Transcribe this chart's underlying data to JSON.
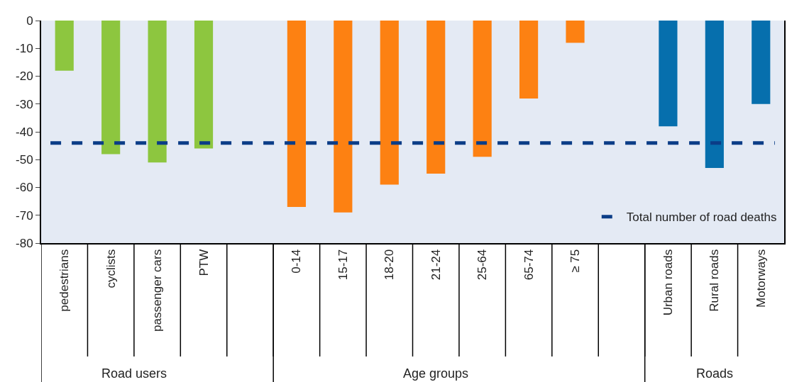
{
  "chart_data": {
    "type": "bar",
    "categories": [
      "pedestrians",
      "cyclists",
      "passenger cars",
      "PTW",
      null,
      "0-14",
      "15-17",
      "18-20",
      "21-24",
      "25-64",
      "65-74",
      "≥ 75",
      null,
      "Urban roads",
      "Rural roads",
      "Motorways"
    ],
    "values": [
      -18,
      -48,
      -51,
      -46,
      null,
      -67,
      -69,
      -59,
      -55,
      -49,
      -28,
      -8,
      null,
      -38,
      -53,
      -30
    ],
    "colors": [
      "#8dc63f",
      "#8dc63f",
      "#8dc63f",
      "#8dc63f",
      null,
      "#fd8112",
      "#fd8112",
      "#fd8112",
      "#fd8112",
      "#fd8112",
      "#fd8112",
      "#fd8112",
      null,
      "#066fad",
      "#066fad",
      "#066fad"
    ],
    "ylim": [
      -80,
      0
    ],
    "yticks": [
      -80,
      -70,
      -60,
      -50,
      -40,
      -30,
      -20,
      -10,
      0
    ],
    "grid": false,
    "legend": "bottom right",
    "ref_lines": [
      {
        "axis": "y",
        "value": -44,
        "label": "Total number of road deaths",
        "color": "#0b3d87",
        "line_style": "dashed"
      }
    ],
    "annotations": [
      "Road users",
      "Age groups",
      "Roads"
    ]
  }
}
